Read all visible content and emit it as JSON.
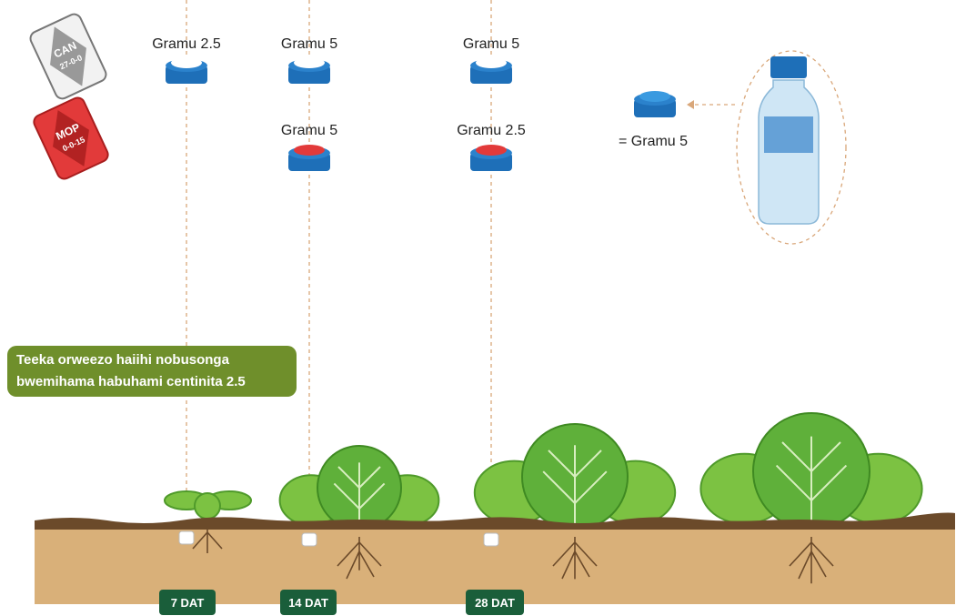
{
  "fertilizers": [
    {
      "name": "CAN",
      "grade": "27-0-0"
    },
    {
      "name": "MOP",
      "grade": "0-0-15"
    }
  ],
  "applications": [
    {
      "label": "7 DAT",
      "can": "Gramu 2.5"
    },
    {
      "label": "14 DAT",
      "can": "Gramu 5",
      "mop": "Gramu 5"
    },
    {
      "label": "28 DAT",
      "can": "Gramu 5",
      "mop": "Gramu 2.5"
    }
  ],
  "measure": {
    "equals": "= Gramu 5"
  },
  "instruction": [
    "Teeka orweezo haiihi nobusonga",
    "bwemihama habuhami centinita 2.5"
  ]
}
